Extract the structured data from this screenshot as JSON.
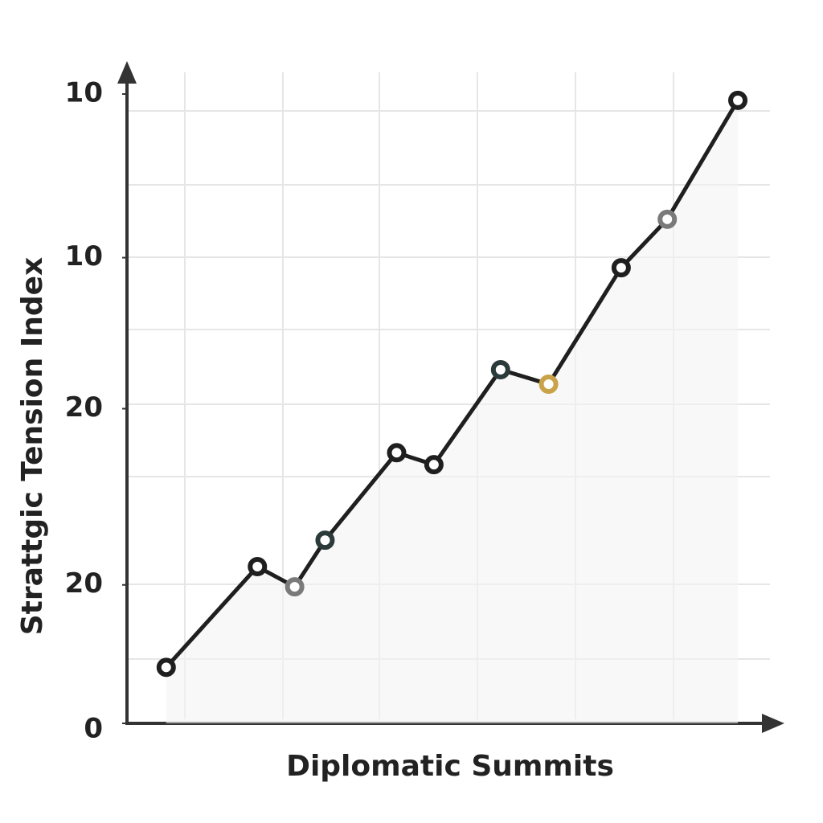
{
  "chart_data": {
    "type": "line",
    "x_label": "Diplomatic Summits",
    "y_label": "Strattgic Tension Index",
    "xlim": [
      0,
      6.7
    ],
    "ylim": [
      0,
      10
    ],
    "yticks": [
      0,
      {
        "value": 2.2,
        "label": "20"
      },
      {
        "value": 5,
        "label": "20"
      },
      {
        "value": 7.4,
        "label": "10"
      },
      10
    ],
    "series": [
      {
        "color": "#1f1f1f",
        "x": [
          0.4,
          1.33,
          1.71,
          2.02,
          2.75,
          3.13,
          3.81,
          4.3,
          5.04,
          5.51,
          6.23
        ],
        "values": [
          0.89,
          2.49,
          2.17,
          2.91,
          4.3,
          4.11,
          5.62,
          5.39,
          7.24,
          8.01,
          9.9
        ],
        "marker_colors": [
          "#1f1f1f",
          "#1f1f1f",
          "#7a7a7a",
          "#2b3a3a",
          "#1f1f1f",
          "#1f1f1f",
          "#2b3a3a",
          "#c9a24a",
          "#1f1f1f",
          "#7a7a7a",
          "#1f1f1f"
        ]
      }
    ]
  }
}
